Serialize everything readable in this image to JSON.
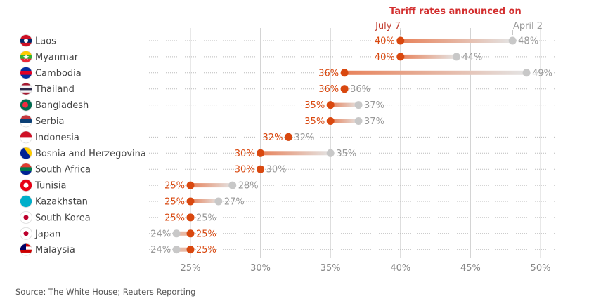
{
  "chart_data": {
    "type": "dumbbell",
    "legend_title": "Tariff rates announced on",
    "series": [
      {
        "name": "July 7",
        "color": "#d9480f"
      },
      {
        "name": "April 2",
        "color": "#c8c8c8"
      }
    ],
    "categories": [
      "Laos",
      "Myanmar",
      "Cambodia",
      "Thailand",
      "Bangladesh",
      "Serbia",
      "Indonesia",
      "Bosnia and Herzegovina",
      "South Africa",
      "Tunisia",
      "Kazakhstan",
      "South Korea",
      "Japan",
      "Malaysia"
    ],
    "july7": [
      40,
      40,
      36,
      36,
      35,
      35,
      32,
      30,
      30,
      25,
      25,
      25,
      25,
      25
    ],
    "april2": [
      48,
      44,
      49,
      36,
      37,
      37,
      32,
      35,
      30,
      28,
      27,
      25,
      24,
      24
    ],
    "flags": [
      "laos",
      "myanmar",
      "cambodia",
      "thailand",
      "bangladesh",
      "serbia",
      "indonesia",
      "bosnia",
      "south-africa",
      "tunisia",
      "kazakhstan",
      "south-korea",
      "japan",
      "malaysia"
    ],
    "x_ticks": [
      "25%",
      "30%",
      "35%",
      "40%",
      "45%",
      "50%"
    ],
    "x_tick_values": [
      25,
      30,
      35,
      40,
      45,
      50
    ],
    "xlim": [
      22,
      51
    ],
    "grid": true,
    "unit": "%"
  },
  "source": "Source: The White House; Reuters Reporting"
}
